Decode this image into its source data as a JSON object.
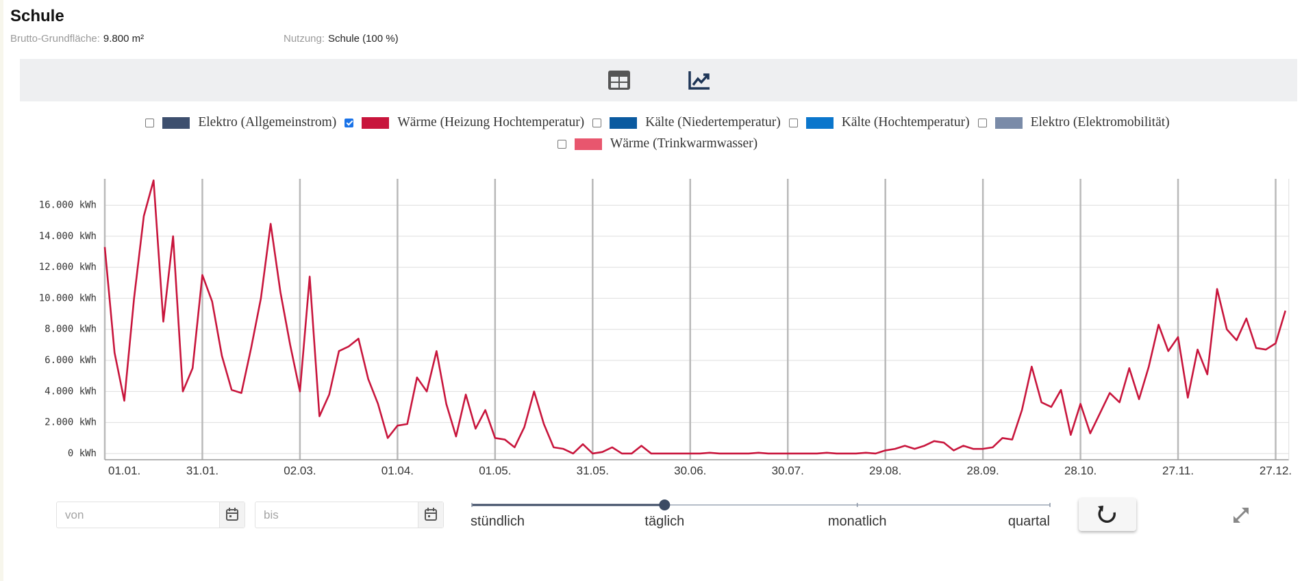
{
  "header": {
    "title": "Schule",
    "fields": [
      {
        "label": "Brutto-Grundfläche:",
        "value": "9.800 m²"
      },
      {
        "label": "Nutzung:",
        "value": "Schule (100 %)"
      }
    ]
  },
  "chart_data": {
    "type": "line",
    "series": [
      {
        "name": "Elektro (Allgemeinstrom)",
        "color": "#3d4f6e",
        "checked": false
      },
      {
        "name": "Wärme (Heizung Hochtemperatur)",
        "color": "#c8153c",
        "checked": true,
        "values": [
          13300,
          6500,
          3400,
          10000,
          15300,
          17600,
          8500,
          14000,
          4000,
          5500,
          11500,
          9800,
          6300,
          4100,
          3900,
          6800,
          10000,
          14800,
          10400,
          7000,
          4000,
          11400,
          2400,
          3800,
          6600,
          6900,
          7400,
          4800,
          3200,
          1000,
          1800,
          1900,
          4900,
          4000,
          6600,
          3200,
          1100,
          3800,
          1600,
          2800,
          1000,
          900,
          400,
          1700,
          4000,
          1900,
          400,
          300,
          0,
          600,
          0,
          100,
          400,
          0,
          0,
          500,
          0,
          0,
          0,
          0,
          0,
          0,
          50,
          0,
          0,
          0,
          0,
          50,
          0,
          0,
          0,
          0,
          0,
          0,
          50,
          0,
          0,
          0,
          50,
          0,
          200,
          300,
          500,
          300,
          500,
          800,
          700,
          200,
          500,
          300,
          300,
          400,
          1000,
          900,
          2800,
          5600,
          3300,
          3000,
          4100,
          1200,
          3200,
          1300,
          2600,
          3900,
          3300,
          5500,
          3500,
          5600,
          8300,
          6600,
          7500,
          3600,
          6700,
          5100,
          10600,
          8000,
          7300,
          8700,
          6800,
          6700,
          7100,
          9200
        ]
      },
      {
        "name": "Kälte (Niedertemperatur)",
        "color": "#0a5aa0",
        "checked": false
      },
      {
        "name": "Kälte (Hochtemperatur)",
        "color": "#0b76cc",
        "checked": false
      },
      {
        "name": "Elektro (Elektromobilität)",
        "color": "#7a8ba8",
        "checked": false
      },
      {
        "name": "Wärme (Trinkwarmwasser)",
        "color": "#e8566e",
        "checked": false
      }
    ],
    "x": [
      "01.01.",
      null,
      null,
      null,
      null,
      null,
      null,
      null,
      null,
      null,
      "31.01.",
      null,
      null,
      null,
      null,
      null,
      null,
      null,
      null,
      null,
      "02.03.",
      null,
      null,
      null,
      null,
      null,
      null,
      null,
      null,
      null,
      "01.04.",
      null,
      null,
      null,
      null,
      null,
      null,
      null,
      null,
      null,
      "01.05.",
      null,
      null,
      null,
      null,
      null,
      null,
      null,
      null,
      null,
      "31.05.",
      null,
      null,
      null,
      null,
      null,
      null,
      null,
      null,
      null,
      "30.06.",
      null,
      null,
      null,
      null,
      null,
      null,
      null,
      null,
      null,
      "30.07.",
      null,
      null,
      null,
      null,
      null,
      null,
      null,
      null,
      null,
      "29.08.",
      null,
      null,
      null,
      null,
      null,
      null,
      null,
      null,
      null,
      "28.09.",
      null,
      null,
      null,
      null,
      null,
      null,
      null,
      null,
      null,
      "28.10.",
      null,
      null,
      null,
      null,
      null,
      null,
      null,
      null,
      null,
      "27.11.",
      null,
      null,
      null,
      null,
      null,
      null,
      null,
      null,
      null,
      "27.12.",
      null
    ],
    "ylim": [
      -400,
      17700
    ],
    "yticks": [
      {
        "value": 0,
        "label": "0 kWh"
      },
      {
        "value": 2000,
        "label": "2.000 kWh"
      },
      {
        "value": 4000,
        "label": "4.000 kWh"
      },
      {
        "value": 6000,
        "label": "6.000 kWh"
      },
      {
        "value": 8000,
        "label": "8.000 kWh"
      },
      {
        "value": 10000,
        "label": "10.000 kWh"
      },
      {
        "value": 12000,
        "label": "12.000 kWh"
      },
      {
        "value": 14000,
        "label": "14.000 kWh"
      },
      {
        "value": 16000,
        "label": "16.000 kWh"
      }
    ],
    "grid": true
  },
  "controls": {
    "from": "von",
    "to": "bis",
    "resolutions": [
      "stündlich",
      "täglich",
      "monatlich",
      "quartal"
    ],
    "selected_resolution": 1
  }
}
